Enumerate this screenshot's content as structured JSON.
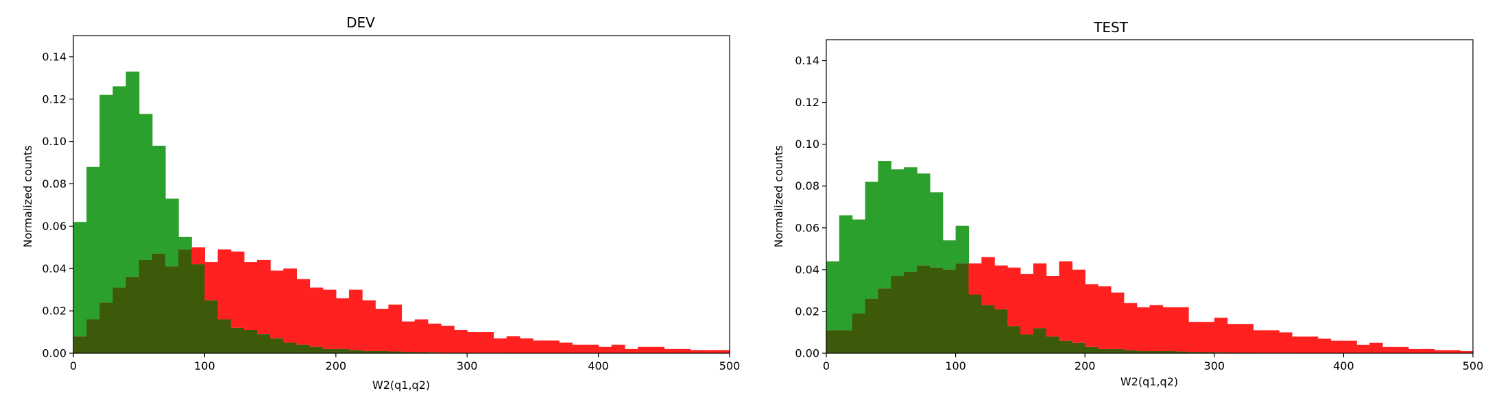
{
  "colors": {
    "green": "#2ca02c",
    "red": "#ff2020",
    "overlap": "#3d5a0b"
  },
  "chart_data": [
    {
      "type": "bar",
      "title": "DEV",
      "xlabel": "W2(q1,q2)",
      "ylabel": "Normalized counts",
      "xlim": [
        0,
        500
      ],
      "ylim": [
        0,
        0.15
      ],
      "xticks": [
        "0",
        "100",
        "200",
        "300",
        "400",
        "500"
      ],
      "yticks": [
        "0.00",
        "0.02",
        "0.04",
        "0.06",
        "0.08",
        "0.10",
        "0.12",
        "0.14"
      ],
      "grid": false,
      "bin_width": 10,
      "series": [
        {
          "color": "green",
          "values": [
            0.062,
            0.088,
            0.122,
            0.126,
            0.133,
            0.113,
            0.098,
            0.073,
            0.055,
            0.042,
            0.025,
            0.016,
            0.012,
            0.011,
            0.009,
            0.007,
            0.005,
            0.004,
            0.003,
            0.002,
            0.002,
            0.0015,
            0.001,
            0.001,
            0.0008,
            0.0006,
            0.0005,
            0.0004,
            0.0003,
            0.0003,
            0.0002,
            0.0002,
            0.0002,
            0.0001,
            0.0001,
            0.0001,
            0.0001,
            0.0001,
            0.0001,
            0.0001,
            0,
            0,
            0,
            0,
            0,
            0,
            0,
            0,
            0,
            0
          ]
        },
        {
          "color": "red",
          "values": [
            0.008,
            0.016,
            0.024,
            0.031,
            0.036,
            0.044,
            0.047,
            0.041,
            0.049,
            0.05,
            0.043,
            0.049,
            0.048,
            0.043,
            0.044,
            0.039,
            0.04,
            0.035,
            0.031,
            0.03,
            0.026,
            0.03,
            0.025,
            0.021,
            0.023,
            0.015,
            0.016,
            0.014,
            0.013,
            0.011,
            0.01,
            0.01,
            0.007,
            0.008,
            0.007,
            0.006,
            0.006,
            0.005,
            0.004,
            0.004,
            0.003,
            0.004,
            0.002,
            0.003,
            0.003,
            0.002,
            0.002,
            0.0015,
            0.0015,
            0.0015
          ]
        }
      ]
    },
    {
      "type": "bar",
      "title": "TEST",
      "xlabel": "W2(q1,q2)",
      "ylabel": "Normalized counts",
      "xlim": [
        0,
        500
      ],
      "ylim": [
        0,
        0.15
      ],
      "xticks": [
        "0",
        "100",
        "200",
        "300",
        "400",
        "500"
      ],
      "yticks": [
        "0.00",
        "0.02",
        "0.04",
        "0.06",
        "0.08",
        "0.10",
        "0.12",
        "0.14"
      ],
      "grid": false,
      "bin_width": 10,
      "series": [
        {
          "color": "green",
          "values": [
            0.044,
            0.066,
            0.064,
            0.082,
            0.092,
            0.088,
            0.089,
            0.086,
            0.077,
            0.054,
            0.061,
            0.028,
            0.023,
            0.021,
            0.013,
            0.009,
            0.012,
            0.008,
            0.006,
            0.005,
            0.003,
            0.002,
            0.002,
            0.0015,
            0.001,
            0.001,
            0.001,
            0.0008,
            0.0006,
            0.0005,
            0.0004,
            0.0003,
            0.0003,
            0.0002,
            0.0002,
            0.0002,
            0.0001,
            0.0001,
            0.0001,
            0.0001,
            0,
            0,
            0,
            0,
            0,
            0,
            0,
            0,
            0,
            0
          ]
        },
        {
          "color": "red",
          "values": [
            0.011,
            0.011,
            0.019,
            0.026,
            0.031,
            0.037,
            0.039,
            0.042,
            0.041,
            0.04,
            0.043,
            0.043,
            0.046,
            0.042,
            0.041,
            0.038,
            0.043,
            0.037,
            0.044,
            0.04,
            0.033,
            0.032,
            0.029,
            0.024,
            0.022,
            0.023,
            0.022,
            0.022,
            0.015,
            0.015,
            0.017,
            0.014,
            0.014,
            0.011,
            0.011,
            0.01,
            0.008,
            0.008,
            0.007,
            0.006,
            0.006,
            0.004,
            0.005,
            0.003,
            0.003,
            0.002,
            0.002,
            0.0015,
            0.0015,
            0.001
          ]
        }
      ]
    }
  ]
}
